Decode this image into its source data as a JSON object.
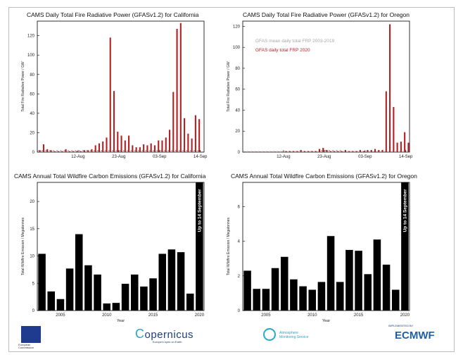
{
  "colors": {
    "bar_red": "#b22222",
    "mean_grey": "#a8a8a8",
    "bar_black": "#000000"
  },
  "chart_data": [
    {
      "type": "bar",
      "title": "CAMS Daily Total Fire Radiative Power (GFASv1.2)  for California",
      "xlabel": "",
      "ylabel": "Total Fire Radiative Power / GW",
      "ylim": [
        0,
        135
      ],
      "yticks": [
        "0",
        "20",
        "40",
        "60",
        "80",
        "100",
        "120"
      ],
      "xticks": [
        "12-Aug",
        "23-Aug",
        "03-Sep",
        "14-Sep"
      ],
      "xtick_days": [
        12,
        23,
        34,
        45
      ],
      "x_start_day": 1,
      "series": [
        {
          "name": "GFAS daily total FRP 2020",
          "values": [
            2,
            8,
            3,
            2,
            1,
            1,
            1,
            3,
            1,
            1,
            1,
            1,
            2,
            2,
            3,
            7,
            9,
            11,
            15,
            118,
            63,
            21,
            17,
            12,
            17,
            7,
            5,
            5,
            8,
            7,
            9,
            7,
            12,
            12,
            15,
            23,
            62,
            127,
            133,
            35,
            19,
            14,
            38,
            34
          ]
        },
        {
          "name": "GFAS mean daily total FRP 2003-2019",
          "values": [
            2,
            2,
            2,
            2,
            2,
            2,
            2,
            2,
            2,
            2,
            2,
            2,
            2,
            2,
            2,
            2,
            2,
            2,
            2,
            2,
            2,
            2,
            2,
            2,
            2,
            2,
            2,
            2,
            2,
            2,
            2,
            2,
            2,
            2,
            2,
            2,
            2,
            2,
            2,
            2,
            2,
            2,
            2,
            2
          ]
        }
      ],
      "grid": false
    },
    {
      "type": "bar",
      "title": "CAMS Daily Total Fire Radiative Power (GFASv1.2)  for Oregon",
      "xlabel": "",
      "ylabel": "Total Fire Radiative Power / GW",
      "ylim": [
        0,
        125
      ],
      "yticks": [
        "0",
        "20",
        "40",
        "60",
        "80",
        "100",
        "120"
      ],
      "xticks": [
        "12-Aug",
        "23-Aug",
        "03-Sep",
        "14-Sep"
      ],
      "xtick_days": [
        12,
        23,
        34,
        45
      ],
      "x_start_day": 1,
      "legend": {
        "placement": "top-left",
        "entries": [
          "GFAS  mean daily total FRP 2003-2019",
          "GFAS  daily total FRP 2020"
        ]
      },
      "series": [
        {
          "name": "GFAS daily total FRP 2020",
          "values": [
            0.5,
            0.5,
            0.5,
            0.5,
            0.5,
            0.5,
            0.5,
            0.5,
            0.5,
            0.5,
            0.5,
            1,
            1,
            1,
            1,
            2,
            1,
            1,
            1,
            1,
            3,
            4,
            2,
            1,
            1,
            1,
            1,
            2,
            1,
            1,
            1,
            2,
            1,
            2,
            2,
            3,
            2,
            2,
            58,
            122,
            43,
            9,
            10,
            19,
            9
          ]
        },
        {
          "name": "GFAS mean daily total FRP 2003-2019",
          "values": [
            1,
            1,
            1,
            1,
            1,
            1,
            1,
            1,
            1,
            1,
            1,
            1,
            1,
            1,
            1,
            1,
            1,
            1,
            1,
            1,
            1,
            2,
            2,
            2,
            2,
            2,
            2,
            1,
            1,
            1,
            1,
            1,
            1,
            1,
            1,
            1,
            1,
            1,
            1,
            1,
            1,
            1,
            1,
            1,
            1
          ]
        }
      ],
      "grid": false
    },
    {
      "type": "bar",
      "title": "CAMS Annual Total Wildfire Carbon Emissions (GFASv1.2) for California",
      "xlabel": "Year",
      "ylabel": "Total Wildfire Emission / Megatonnes",
      "ylim": [
        0,
        23.5
      ],
      "yticks": [
        "0",
        "5",
        "10",
        "15",
        "20"
      ],
      "xticks": [
        "2005",
        "2010",
        "2015",
        "2020"
      ],
      "categories": [
        2003,
        2004,
        2005,
        2006,
        2007,
        2008,
        2009,
        2010,
        2011,
        2012,
        2013,
        2014,
        2015,
        2016,
        2017,
        2018,
        2019,
        2020
      ],
      "values": [
        10.4,
        3.5,
        2.1,
        7.7,
        14.0,
        8.3,
        6.6,
        1.3,
        1.4,
        4.9,
        6.6,
        4.4,
        5.9,
        10.4,
        11.2,
        10.7,
        3.1,
        23.5
      ],
      "annotation": "Up to 14 September",
      "grid": false
    },
    {
      "type": "bar",
      "title": "CAMS Annual Total Wildfire Carbon Emissions (GFASv1.2) for Oregon",
      "xlabel": "Year",
      "ylabel": "Total Wildfire Emission / Megatonnes",
      "ylim": [
        0,
        7.4
      ],
      "yticks": [
        "0",
        "2",
        "4",
        "6"
      ],
      "xticks": [
        "2005",
        "2010",
        "2015",
        "2020"
      ],
      "categories": [
        2003,
        2004,
        2005,
        2006,
        2007,
        2008,
        2009,
        2010,
        2011,
        2012,
        2013,
        2014,
        2015,
        2016,
        2017,
        2018,
        2019,
        2020
      ],
      "values": [
        2.3,
        1.25,
        1.25,
        2.45,
        3.1,
        1.8,
        1.4,
        1.2,
        1.65,
        4.3,
        1.65,
        3.5,
        3.45,
        2.1,
        4.1,
        2.65,
        1.2,
        7.4
      ],
      "annotation": "Up to 14 September",
      "grid": false
    }
  ],
  "footer": {
    "eu_caption": "European Commission",
    "copernicus": "opernicus",
    "copernicus_sub": "Europe's eyes on Earth",
    "cams": "Atmosphere Monitoring Service",
    "ecmwf_caption": "IMPLEMENTED BY",
    "ecmwf": "ECMWF"
  }
}
